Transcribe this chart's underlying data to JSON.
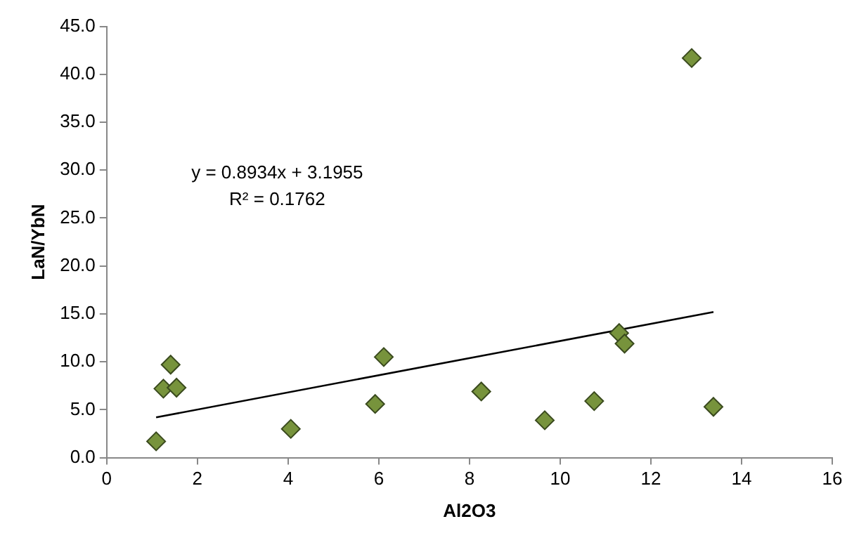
{
  "chart_data": {
    "type": "scatter",
    "xlabel": "Al2O3",
    "ylabel": "LaN/YbN",
    "x": [
      1.09,
      1.25,
      1.41,
      1.54,
      4.06,
      5.92,
      6.11,
      8.26,
      9.66,
      10.75,
      11.3,
      11.42,
      12.9,
      13.38
    ],
    "series": [
      {
        "color": "#77933c",
        "values": [
          1.7,
          7.2,
          9.7,
          7.3,
          3.0,
          5.6,
          10.5,
          6.9,
          3.9,
          5.9,
          13.0,
          11.9,
          41.7,
          5.3
        ]
      },
      {
        "type": "line",
        "color": "#000000",
        "marker": "none",
        "x": [
          1.09,
          13.38
        ],
        "values": [
          4.2,
          15.2
        ]
      }
    ],
    "marker": "diamond",
    "grid": false,
    "legend": false,
    "xlim": [
      0,
      16
    ],
    "xticks": [
      0,
      2,
      4,
      6,
      8,
      10,
      12,
      14,
      16
    ],
    "ylim": [
      0,
      45
    ],
    "yticks": [
      {
        "value": 0,
        "label": "0.0"
      },
      {
        "value": 5,
        "label": "5.0"
      },
      {
        "value": 10,
        "label": "10.0"
      },
      {
        "value": 15,
        "label": "15.0"
      },
      {
        "value": 20,
        "label": "20.0"
      },
      {
        "value": 25,
        "label": "25.0"
      },
      {
        "value": 30,
        "label": "30.0"
      },
      {
        "value": 35,
        "label": "35.0"
      },
      {
        "value": 40,
        "label": "40.0"
      },
      {
        "value": 45,
        "label": "45.0"
      }
    ],
    "annotations": [
      "y = 0.8934x + 3.1955",
      "R² = 0.1762"
    ]
  }
}
